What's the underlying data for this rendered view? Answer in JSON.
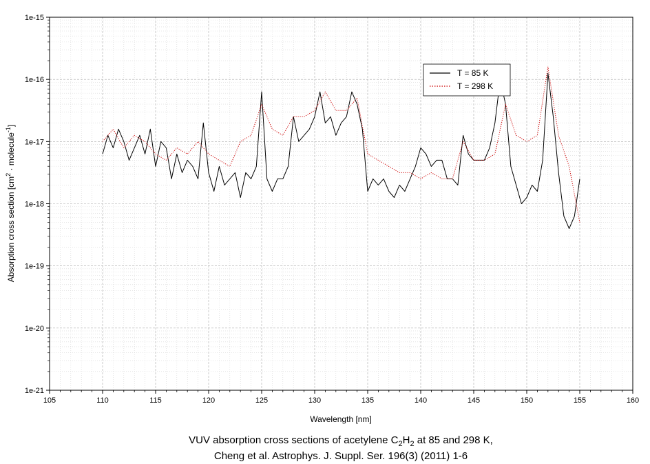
{
  "chart_data": {
    "type": "line",
    "title": "",
    "xlabel": "Wavelength [nm]",
    "ylabel_parts": {
      "main": "Absorption cross section [cm",
      "sup1": "2",
      "mid": " · molecule",
      "sup2": "-1",
      "end": "]"
    },
    "xlim": [
      105,
      160
    ],
    "ylim_log10": [
      -21,
      -15
    ],
    "x_ticks": [
      105,
      110,
      115,
      120,
      125,
      130,
      135,
      140,
      145,
      150,
      155,
      160
    ],
    "x_tick_labels": [
      "105",
      "110",
      "115",
      "120",
      "125",
      "130",
      "135",
      "140",
      "145",
      "150",
      "155",
      "160"
    ],
    "y_ticks_log10": [
      -21,
      -20,
      -19,
      -18,
      -17,
      -16,
      -15
    ],
    "y_tick_labels": [
      "1e-21",
      "1e-20",
      "1e-19",
      "1e-18",
      "1e-17",
      "1e-16",
      "1e-15"
    ],
    "grid": true,
    "legend_position": "top-right",
    "series": [
      {
        "name": "T = 85 K",
        "color": "#000000",
        "style": "solid",
        "x": [
          110,
          110.5,
          111,
          111.5,
          112,
          112.5,
          113,
          113.5,
          114,
          114.5,
          115,
          115.5,
          116,
          116.5,
          117,
          117.5,
          118,
          118.5,
          119,
          119.5,
          120,
          120.5,
          121,
          121.5,
          122,
          122.5,
          123,
          123.5,
          124,
          124.5,
          125,
          125.5,
          126,
          126.5,
          127,
          127.5,
          128,
          128.5,
          129,
          129.5,
          130,
          130.5,
          131,
          131.5,
          132,
          132.5,
          133,
          133.5,
          134,
          134.5,
          135,
          135.5,
          136,
          136.5,
          137,
          137.5,
          138,
          138.5,
          139,
          139.5,
          140,
          140.5,
          141,
          141.5,
          142,
          142.5,
          143,
          143.5,
          144,
          144.5,
          145,
          145.5,
          146,
          146.5,
          147,
          147.5,
          148,
          148.5,
          149,
          149.5,
          150,
          150.5,
          151,
          151.5,
          152,
          152.5,
          153,
          153.5,
          154,
          154.5,
          155
        ],
        "log10_y": [
          -17.2,
          -16.9,
          -17.1,
          -16.8,
          -17.0,
          -17.3,
          -17.1,
          -16.9,
          -17.2,
          -16.8,
          -17.4,
          -17.0,
          -17.1,
          -17.6,
          -17.2,
          -17.5,
          -17.3,
          -17.4,
          -17.6,
          -16.7,
          -17.5,
          -17.8,
          -17.4,
          -17.7,
          -17.6,
          -17.5,
          -17.9,
          -17.5,
          -17.6,
          -17.4,
          -16.2,
          -17.6,
          -17.8,
          -17.6,
          -17.6,
          -17.4,
          -16.6,
          -17.0,
          -16.9,
          -16.8,
          -16.6,
          -16.2,
          -16.7,
          -16.6,
          -16.9,
          -16.7,
          -16.6,
          -16.2,
          -16.4,
          -16.8,
          -17.8,
          -17.6,
          -17.7,
          -17.6,
          -17.8,
          -17.9,
          -17.7,
          -17.8,
          -17.6,
          -17.4,
          -17.1,
          -17.2,
          -17.4,
          -17.3,
          -17.3,
          -17.6,
          -17.6,
          -17.7,
          -16.9,
          -17.2,
          -17.3,
          -17.3,
          -17.3,
          -17.1,
          -16.7,
          -16.0,
          -16.4,
          -17.4,
          -17.7,
          -18.0,
          -17.9,
          -17.7,
          -17.8,
          -17.3,
          -15.9,
          -16.6,
          -17.5,
          -18.2,
          -18.4,
          -18.2,
          -17.6
        ]
      },
      {
        "name": "T = 298 K",
        "color": "#cc0000",
        "style": "dotted",
        "x": [
          110,
          111,
          112,
          113,
          114,
          115,
          116,
          117,
          118,
          119,
          120,
          121,
          122,
          123,
          124,
          125,
          126,
          127,
          128,
          129,
          130,
          131,
          132,
          133,
          134,
          135,
          136,
          137,
          138,
          139,
          140,
          141,
          142,
          143,
          144,
          145,
          146,
          147,
          148,
          149,
          150,
          151,
          152,
          153,
          154,
          155
        ],
        "log10_y": [
          -17.0,
          -16.8,
          -17.1,
          -16.9,
          -17.0,
          -17.2,
          -17.3,
          -17.1,
          -17.2,
          -17.0,
          -17.2,
          -17.3,
          -17.4,
          -17.0,
          -16.9,
          -16.4,
          -16.8,
          -16.9,
          -16.6,
          -16.6,
          -16.5,
          -16.2,
          -16.5,
          -16.5,
          -16.3,
          -17.2,
          -17.3,
          -17.4,
          -17.5,
          -17.5,
          -17.6,
          -17.5,
          -17.6,
          -17.6,
          -17.0,
          -17.3,
          -17.3,
          -17.2,
          -16.4,
          -16.9,
          -17.0,
          -16.9,
          -15.8,
          -16.9,
          -17.4,
          -18.3
        ]
      }
    ],
    "caption_line1_parts": {
      "a": "VUV absorption cross sections of acetylene C",
      "s1": "2",
      "b": "H",
      "s2": "2",
      "c": " at 85 and 298 K,"
    },
    "caption_line2": "Cheng et al. Astrophys. J. Suppl. Ser. 196(3) (2011) 1-6"
  }
}
